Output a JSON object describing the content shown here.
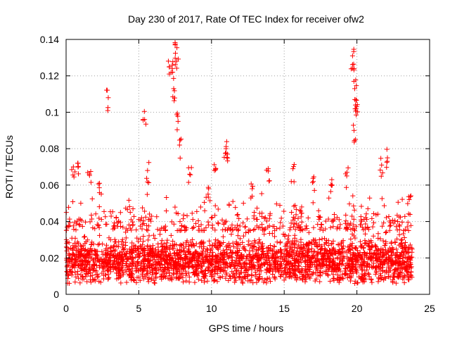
{
  "chart_data": {
    "type": "scatter",
    "title": "Day 230 of 2017, Rate Of TEC Index for receiver ofw2",
    "xlabel": "GPS time / hours",
    "ylabel": "ROTI / TECUs",
    "xlim": [
      0,
      25
    ],
    "ylim": [
      0,
      0.14
    ],
    "x_ticks": [
      "0",
      "5",
      "10",
      "15",
      "20",
      "25"
    ],
    "y_ticks": [
      "0",
      "0.02",
      "0.04",
      "0.06",
      "0.08",
      "0.1",
      "0.12",
      "0.14"
    ],
    "grid": true,
    "marker": "plus",
    "color": "#ff0000",
    "x_range": [
      0,
      23.8
    ],
    "baseline_band": [
      0.006,
      0.035
    ],
    "notable_points": [
      {
        "x": 2.9,
        "y": 0.108
      },
      {
        "x": 5.4,
        "y": 0.096
      },
      {
        "x": 5.6,
        "y": 0.068
      },
      {
        "x": 7.1,
        "y": 0.125
      },
      {
        "x": 7.3,
        "y": 0.124
      },
      {
        "x": 7.4,
        "y": 0.113
      },
      {
        "x": 7.5,
        "y": 0.137
      },
      {
        "x": 7.6,
        "y": 0.128
      },
      {
        "x": 7.7,
        "y": 0.095
      },
      {
        "x": 7.8,
        "y": 0.082
      },
      {
        "x": 8.5,
        "y": 0.066
      },
      {
        "x": 11.0,
        "y": 0.08
      },
      {
        "x": 11.1,
        "y": 0.077
      },
      {
        "x": 13.9,
        "y": 0.069
      },
      {
        "x": 15.6,
        "y": 0.069
      },
      {
        "x": 17.0,
        "y": 0.062
      },
      {
        "x": 18.3,
        "y": 0.06
      },
      {
        "x": 19.3,
        "y": 0.065
      },
      {
        "x": 19.7,
        "y": 0.131
      },
      {
        "x": 19.8,
        "y": 0.124
      },
      {
        "x": 19.85,
        "y": 0.113
      },
      {
        "x": 19.9,
        "y": 0.104
      },
      {
        "x": 19.95,
        "y": 0.102
      },
      {
        "x": 19.8,
        "y": 0.09
      },
      {
        "x": 21.7,
        "y": 0.071
      },
      {
        "x": 22.1,
        "y": 0.075
      },
      {
        "x": 0.8,
        "y": 0.072
      },
      {
        "x": 0.5,
        "y": 0.07
      },
      {
        "x": 1.6,
        "y": 0.066
      },
      {
        "x": 2.3,
        "y": 0.061
      },
      {
        "x": 10.2,
        "y": 0.068
      },
      {
        "x": 9.8,
        "y": 0.058
      },
      {
        "x": 12.8,
        "y": 0.058
      },
      {
        "x": 16.2,
        "y": 0.048
      },
      {
        "x": 23.6,
        "y": 0.052
      }
    ]
  }
}
